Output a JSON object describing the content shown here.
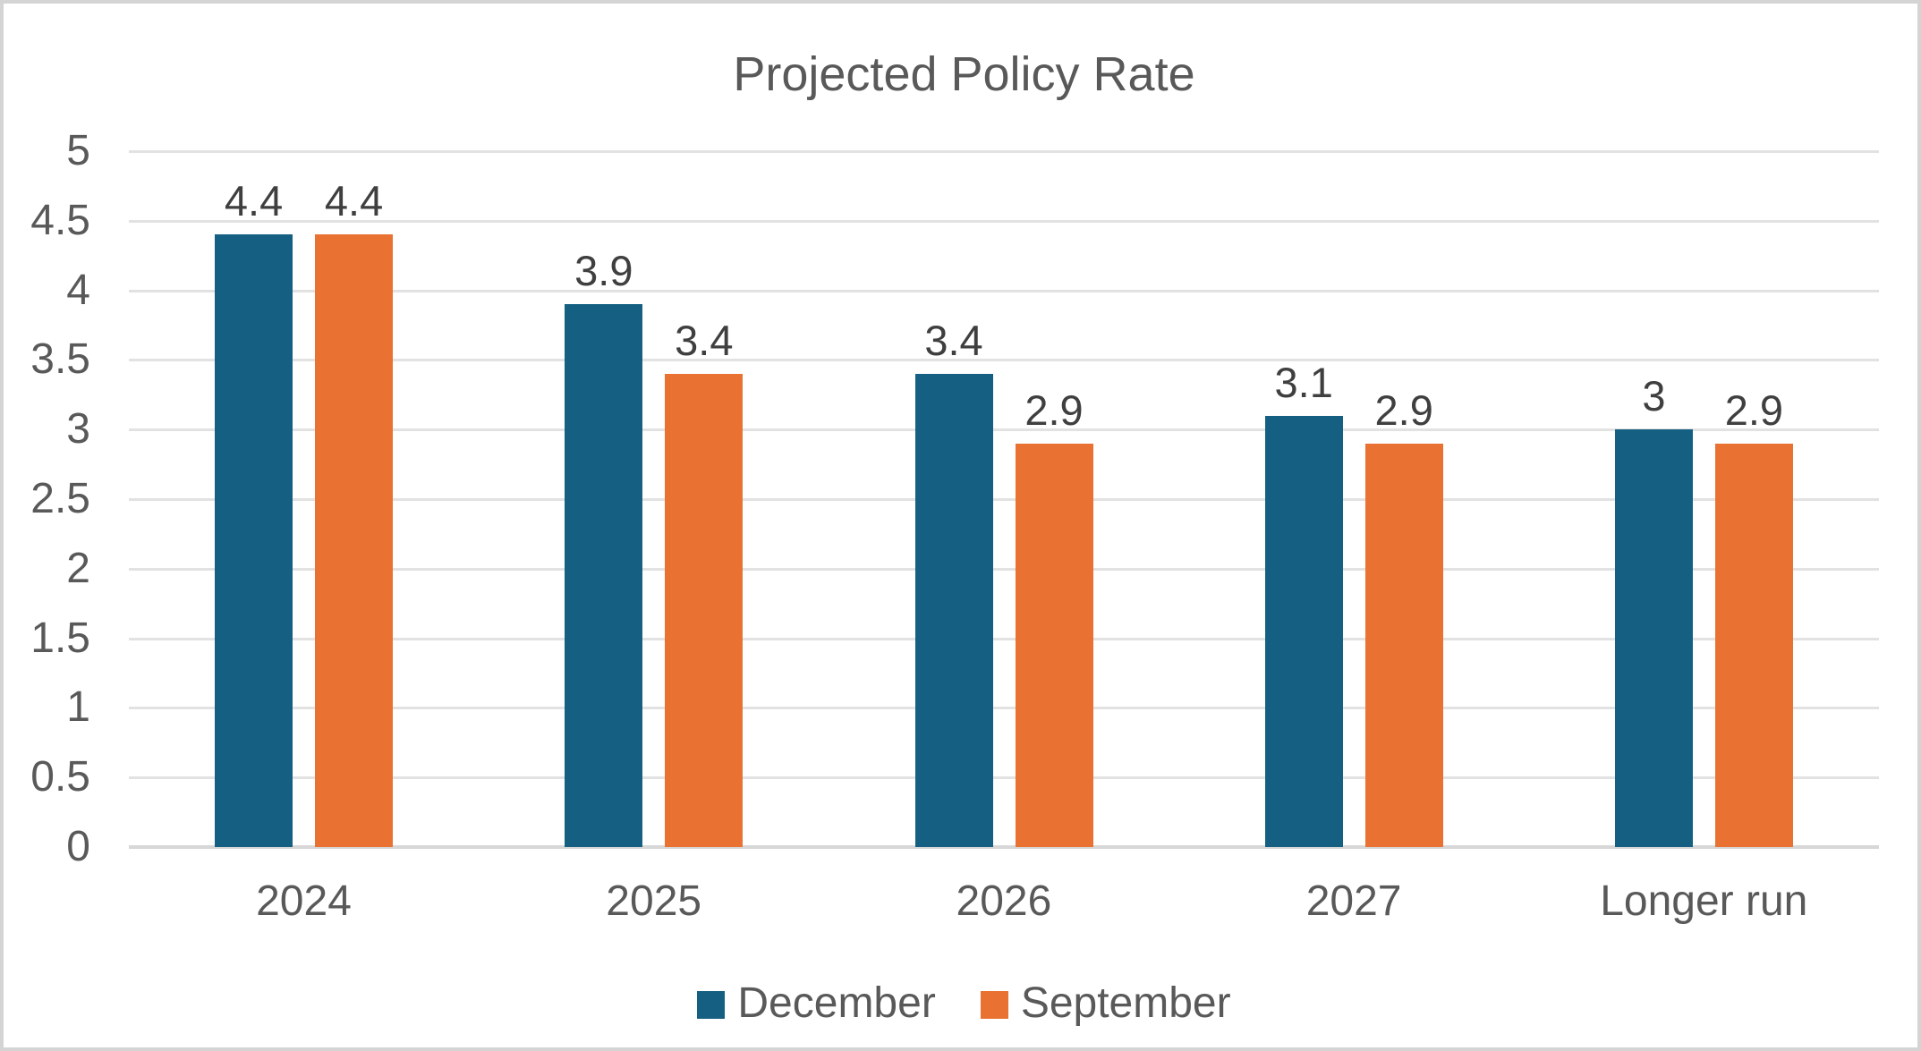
{
  "chart_data": {
    "type": "bar",
    "title": "Projected Policy Rate",
    "categories": [
      "2024",
      "2025",
      "2026",
      "2027",
      "Longer run"
    ],
    "series": [
      {
        "name": "December",
        "color": "#156082",
        "values": [
          4.4,
          3.9,
          3.4,
          3.1,
          3
        ]
      },
      {
        "name": "September",
        "color": "#E97132",
        "values": [
          4.4,
          3.4,
          2.9,
          2.9,
          2.9
        ]
      }
    ],
    "y_axis": {
      "min": 0,
      "max": 5,
      "step": 0.5,
      "tick_labels": [
        "0",
        "0.5",
        "1",
        "1.5",
        "2",
        "2.5",
        "3",
        "3.5",
        "4",
        "4.5",
        "5"
      ]
    },
    "legend": {
      "position": "bottom",
      "entries": [
        "December",
        "September"
      ]
    },
    "grid": true,
    "data_labels_shown": true,
    "colors": {
      "bar_december": "#156082",
      "bar_september": "#E97132",
      "gridline": "#E2E2E2",
      "axis_line": "#D7D7D7",
      "axis_text": "#595959",
      "data_label_text": "#3F3F3F",
      "title_text": "#595959",
      "frame_border": "#D4D4D4"
    }
  }
}
